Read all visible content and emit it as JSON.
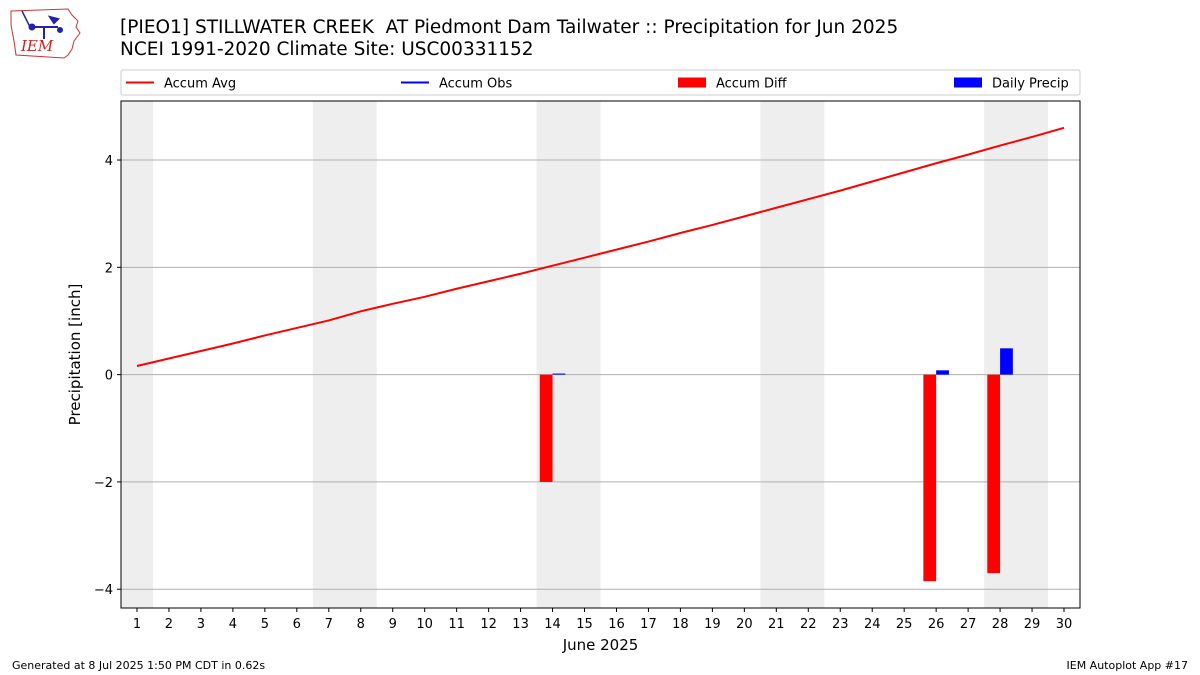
{
  "logo": {
    "text": "IEM"
  },
  "header": {
    "title": "[PIEO1] STILLWATER CREEK  AT Piedmont Dam Tailwater :: Precipitation for Jun 2025",
    "subtitle": "NCEI 1991-2020 Climate Site: USC00331152"
  },
  "footer": {
    "left": "Generated at 8 Jul 2025 1:50 PM CDT in 0.62s",
    "right": "IEM Autoplot App #17"
  },
  "colors": {
    "avg": "#ff0000",
    "obs": "#0000ff",
    "diff": "#ff0000",
    "daily": "#0000ff",
    "weekend": "#eeeeee",
    "grid": "#b0b0b0"
  },
  "chart_data": {
    "type": "bar",
    "xlabel": "June 2025",
    "ylabel": "Precipitation [inch]",
    "xlim": [
      0.5,
      30.5
    ],
    "ylim": [
      -4.35,
      5.1
    ],
    "yticks": [
      -4,
      -2,
      0,
      2,
      4
    ],
    "ytick_labels": [
      "−4",
      "−2",
      "0",
      "2",
      "4"
    ],
    "days": [
      1,
      2,
      3,
      4,
      5,
      6,
      7,
      8,
      9,
      10,
      11,
      12,
      13,
      14,
      15,
      16,
      17,
      18,
      19,
      20,
      21,
      22,
      23,
      24,
      25,
      26,
      27,
      28,
      29,
      30
    ],
    "grid": "horizontal",
    "legend_position": "top",
    "legend": [
      {
        "label": "Accum Avg",
        "kind": "line",
        "color": "#ff0000"
      },
      {
        "label": "Accum Obs",
        "kind": "line",
        "color": "#0000ff"
      },
      {
        "label": "Accum Diff",
        "kind": "bar",
        "color": "#ff0000"
      },
      {
        "label": "Daily Precip",
        "kind": "bar",
        "color": "#0000ff"
      }
    ],
    "weekend_shading": [
      [
        0.5,
        1.5
      ],
      [
        6.5,
        8.5
      ],
      [
        13.5,
        15.5
      ],
      [
        20.5,
        22.5
      ],
      [
        27.5,
        29.5
      ]
    ],
    "series": [
      {
        "name": "Accum Avg",
        "type": "line",
        "x": [
          1,
          2,
          3,
          4,
          5,
          6,
          7,
          8,
          9,
          10,
          11,
          12,
          13,
          14,
          15,
          16,
          17,
          18,
          19,
          20,
          21,
          22,
          23,
          24,
          25,
          26,
          27,
          28,
          29,
          30
        ],
        "values": [
          0.16,
          0.3,
          0.44,
          0.58,
          0.73,
          0.87,
          1.01,
          1.18,
          1.32,
          1.45,
          1.6,
          1.74,
          1.88,
          2.03,
          2.18,
          2.33,
          2.48,
          2.64,
          2.79,
          2.95,
          3.11,
          3.27,
          3.43,
          3.6,
          3.77,
          3.94,
          4.1,
          4.27,
          4.43,
          4.6
        ]
      },
      {
        "name": "Accum Diff",
        "type": "bar",
        "x": [
          14,
          26,
          28
        ],
        "values": [
          -2.0,
          -3.85,
          -3.7
        ]
      },
      {
        "name": "Daily Precip",
        "type": "bar",
        "x": [
          14,
          26,
          28
        ],
        "values": [
          0.02,
          0.08,
          0.49
        ]
      }
    ]
  }
}
